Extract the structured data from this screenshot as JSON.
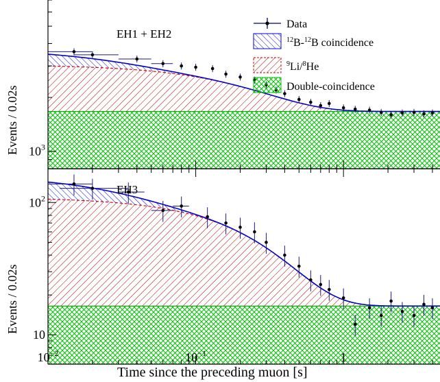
{
  "chart_data": [
    {
      "type": "scatter",
      "panel_label": "EH1 + EH2",
      "xlabel": "Time since the preceding muon [s]",
      "ylabel": "Events / 0.02s",
      "xscale": "log",
      "yscale": "log",
      "xlim": [
        0.01,
        4.5
      ],
      "ylim": [
        800,
        7000
      ],
      "y_tick_labels": [
        "10^3"
      ],
      "legend": {
        "placement": "top-right",
        "entries": [
          {
            "label": "Data",
            "style": "marker-errorbar",
            "color": "#000066"
          },
          {
            "label": "¹²B-¹²B coincidence",
            "style": "hatch-backslash",
            "color": "#0000dd"
          },
          {
            "label": "⁹Li/⁸He",
            "style": "hatch-slash-dashed",
            "color": "#dd0000"
          },
          {
            "label": "Double-coincidence",
            "style": "crosshatch",
            "color": "#00bb00"
          }
        ]
      },
      "components": {
        "double_coincidence_level": 1670,
        "li_he_amplitude": 1380,
        "li_he_tau": 0.257,
        "b12_amplitude": 690,
        "b12_tau": 0.029
      },
      "data_points": [
        {
          "x": 0.015,
          "y": 3600,
          "xerr": [
            0.01,
            0.02
          ]
        },
        {
          "x": 0.02,
          "y": 3460,
          "xerr": [
            0.015,
            0.03
          ]
        },
        {
          "x": 0.04,
          "y": 3280,
          "xerr": [
            0.03,
            0.05
          ]
        },
        {
          "x": 0.06,
          "y": 3090,
          "xerr": [
            0.05,
            0.07
          ]
        },
        {
          "x": 0.08,
          "y": 3000
        },
        {
          "x": 0.1,
          "y": 2950
        },
        {
          "x": 0.13,
          "y": 2900
        },
        {
          "x": 0.16,
          "y": 2700
        },
        {
          "x": 0.2,
          "y": 2600
        },
        {
          "x": 0.25,
          "y": 2500
        },
        {
          "x": 0.3,
          "y": 2350
        },
        {
          "x": 0.35,
          "y": 2200
        },
        {
          "x": 0.4,
          "y": 2100
        },
        {
          "x": 0.5,
          "y": 1950
        },
        {
          "x": 0.6,
          "y": 1880
        },
        {
          "x": 0.7,
          "y": 1800
        },
        {
          "x": 0.8,
          "y": 1850
        },
        {
          "x": 1.0,
          "y": 1750
        },
        {
          "x": 1.2,
          "y": 1720
        },
        {
          "x": 1.5,
          "y": 1700
        },
        {
          "x": 1.8,
          "y": 1650
        },
        {
          "x": 2.1,
          "y": 1600
        },
        {
          "x": 2.5,
          "y": 1640
        },
        {
          "x": 3.0,
          "y": 1650
        },
        {
          "x": 3.5,
          "y": 1620
        },
        {
          "x": 4.0,
          "y": 1640
        }
      ]
    },
    {
      "type": "scatter",
      "panel_label": "EH3",
      "xlabel": "Time since the preceding muon [s]",
      "ylabel": "Events / 0.02s",
      "xscale": "log",
      "yscale": "log",
      "xlim": [
        0.01,
        4.5
      ],
      "ylim": [
        6,
        180
      ],
      "x_tick_labels": [
        "10^-2",
        "10^-1",
        "1"
      ],
      "y_tick_labels": [
        "10",
        "10^2"
      ],
      "components": {
        "double_coincidence_level": 16.5,
        "li_he_amplitude": 93,
        "li_he_tau": 0.257,
        "b12_amplitude": 52,
        "b12_tau": 0.029
      },
      "data_points": [
        {
          "x": 0.015,
          "y": 138,
          "xerr": [
            0.01,
            0.02
          ]
        },
        {
          "x": 0.02,
          "y": 128,
          "xerr": [
            0.012,
            0.035
          ]
        },
        {
          "x": 0.035,
          "y": 120,
          "xerr": [
            0.03,
            0.045
          ]
        },
        {
          "x": 0.06,
          "y": 87,
          "xerr": [
            0.05,
            0.07
          ]
        },
        {
          "x": 0.08,
          "y": 94,
          "xerr": [
            0.07,
            0.09
          ]
        },
        {
          "x": 0.12,
          "y": 78
        },
        {
          "x": 0.16,
          "y": 70
        },
        {
          "x": 0.2,
          "y": 65
        },
        {
          "x": 0.25,
          "y": 60
        },
        {
          "x": 0.3,
          "y": 50
        },
        {
          "x": 0.4,
          "y": 40
        },
        {
          "x": 0.5,
          "y": 33
        },
        {
          "x": 0.6,
          "y": 26
        },
        {
          "x": 0.7,
          "y": 24
        },
        {
          "x": 0.8,
          "y": 22
        },
        {
          "x": 1.0,
          "y": 19
        },
        {
          "x": 1.2,
          "y": 12
        },
        {
          "x": 1.5,
          "y": 16
        },
        {
          "x": 1.8,
          "y": 14
        },
        {
          "x": 2.1,
          "y": 18
        },
        {
          "x": 2.5,
          "y": 15
        },
        {
          "x": 3.0,
          "y": 14
        },
        {
          "x": 3.5,
          "y": 17
        },
        {
          "x": 4.0,
          "y": 16
        }
      ]
    }
  ]
}
